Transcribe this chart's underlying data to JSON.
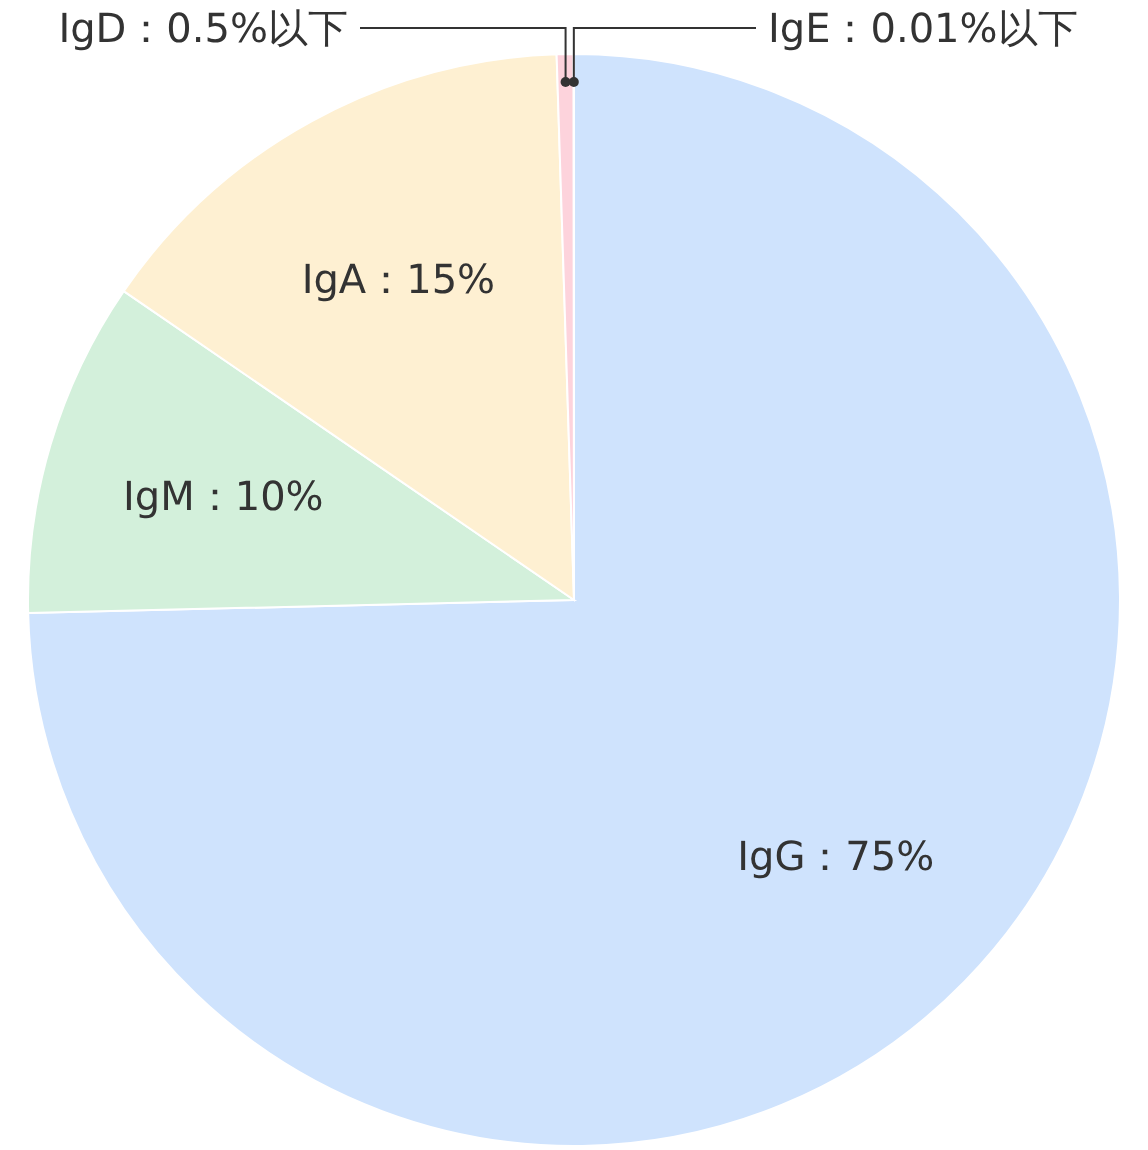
{
  "chart_data": {
    "type": "pie",
    "categories": [
      "IgG：75%",
      "IgM：10%",
      "IgA：15%",
      "IgD：0.5%以下",
      "IgE：0.01%以下"
    ],
    "values": [
      75,
      10,
      15,
      0.5,
      0.01
    ],
    "colors": [
      "#cfe3fd",
      "#d3f0db",
      "#fef0d2",
      "#fdd3dc",
      "#dcdcf0"
    ]
  }
}
